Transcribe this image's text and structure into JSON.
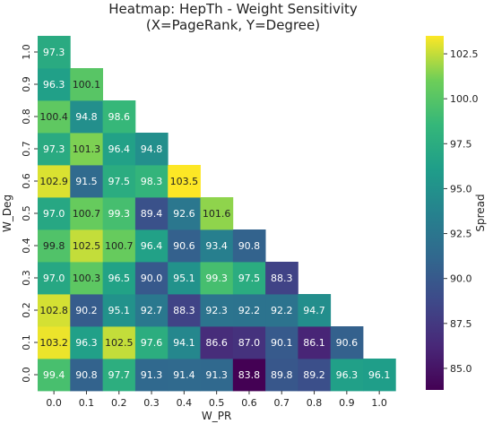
{
  "chart_data": {
    "type": "heatmap",
    "title": "Heatmap: HepTh - Weight Sensitivity",
    "subtitle": "(X=PageRank, Y=Degree)",
    "xlabel": "W_PR",
    "ylabel": "W_Deg",
    "x_ticks": [
      "0.0",
      "0.1",
      "0.2",
      "0.3",
      "0.4",
      "0.5",
      "0.6",
      "0.7",
      "0.8",
      "0.9",
      "1.0"
    ],
    "y_ticks": [
      "0.0",
      "0.1",
      "0.2",
      "0.3",
      "0.4",
      "0.5",
      "0.6",
      "0.7",
      "0.8",
      "0.9",
      "1.0"
    ],
    "colorbar": {
      "label": "Spread",
      "min": 83.8,
      "max": 103.5,
      "ticks": [
        "85.0",
        "87.5",
        "90.0",
        "92.5",
        "95.0",
        "97.5",
        "100.0",
        "102.5"
      ],
      "colormap": "viridis"
    },
    "grid": false,
    "rows": [
      {
        "y": "0.0",
        "values": [
          "99.4",
          "90.8",
          "97.7",
          "91.3",
          "91.4",
          "91.3",
          "83.8",
          "89.8",
          "89.2",
          "96.3",
          "96.1"
        ]
      },
      {
        "y": "0.1",
        "values": [
          "103.2",
          "96.3",
          "102.5",
          "97.6",
          "94.1",
          "86.6",
          "87.0",
          "90.1",
          "86.1",
          "90.6"
        ]
      },
      {
        "y": "0.2",
        "values": [
          "102.8",
          "90.2",
          "95.1",
          "92.7",
          "88.3",
          "92.3",
          "92.2",
          "92.2",
          "94.7"
        ]
      },
      {
        "y": "0.3",
        "values": [
          "97.0",
          "100.3",
          "96.5",
          "90.0",
          "95.1",
          "99.3",
          "97.5",
          "88.3"
        ]
      },
      {
        "y": "0.4",
        "values": [
          "99.8",
          "102.5",
          "100.7",
          "96.4",
          "90.6",
          "93.4",
          "90.8"
        ]
      },
      {
        "y": "0.5",
        "values": [
          "97.0",
          "100.7",
          "99.3",
          "89.4",
          "92.6",
          "101.6"
        ]
      },
      {
        "y": "0.6",
        "values": [
          "102.9",
          "91.5",
          "97.5",
          "98.3",
          "103.5"
        ]
      },
      {
        "y": "0.7",
        "values": [
          "97.3",
          "101.3",
          "96.4",
          "94.8"
        ]
      },
      {
        "y": "0.8",
        "values": [
          "100.4",
          "94.8",
          "98.6"
        ]
      },
      {
        "y": "0.9",
        "values": [
          "96.3",
          "100.1"
        ]
      },
      {
        "y": "1.0",
        "values": [
          "97.3"
        ]
      }
    ]
  }
}
